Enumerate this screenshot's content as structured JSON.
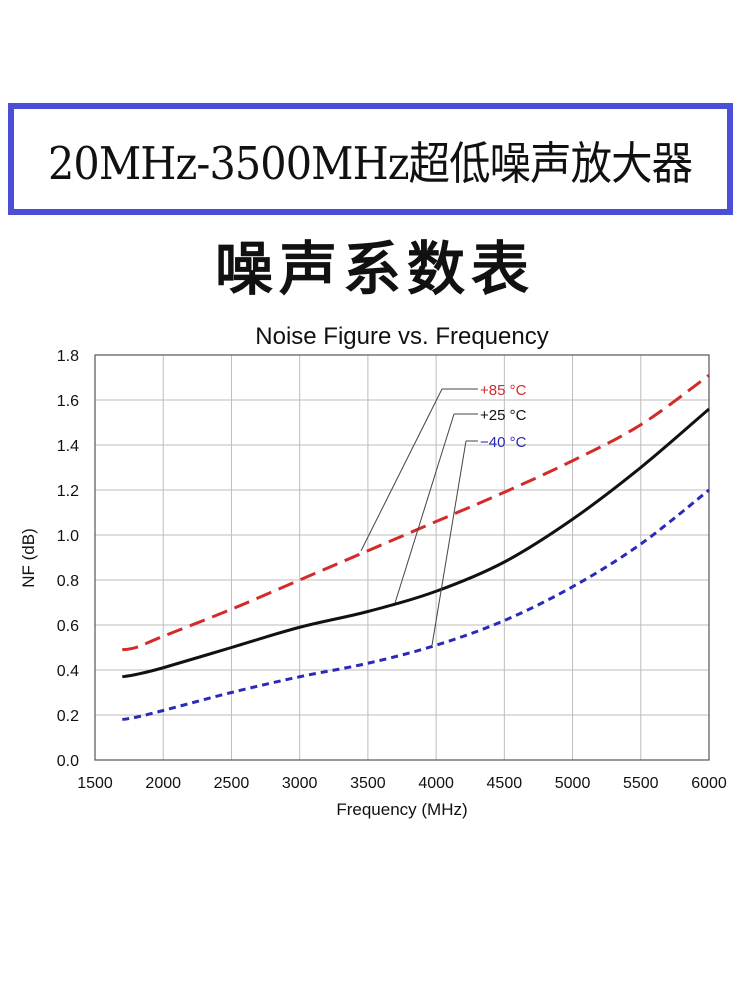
{
  "banner": {
    "title": "20MHz-3500MHz超低噪声放大器"
  },
  "subtitle": "噪声系数表",
  "chart_data": {
    "type": "line",
    "title": "Noise Figure vs. Frequency",
    "xlabel": "Frequency (MHz)",
    "ylabel": "NF (dB)",
    "xlim": [
      1500,
      6000
    ],
    "ylim": [
      0.0,
      1.8
    ],
    "xticks": [
      1500,
      2000,
      2500,
      3000,
      3500,
      4000,
      4500,
      5000,
      5500,
      6000
    ],
    "yticks": [
      "0.0",
      "0.2",
      "0.4",
      "0.6",
      "0.8",
      "1.0",
      "1.2",
      "1.4",
      "1.6",
      "1.8"
    ],
    "grid": true,
    "series": [
      {
        "name": "+85 °C",
        "color": "#d42a2a",
        "style": "dashed",
        "x": [
          1700,
          1800,
          2000,
          2500,
          3000,
          3500,
          4000,
          4500,
          5000,
          5500,
          6000
        ],
        "y": [
          0.49,
          0.5,
          0.55,
          0.67,
          0.8,
          0.93,
          1.06,
          1.19,
          1.33,
          1.49,
          1.71
        ]
      },
      {
        "name": "+25 °C",
        "color": "#111111",
        "style": "solid",
        "x": [
          1700,
          1800,
          2000,
          2500,
          3000,
          3500,
          4000,
          4500,
          5000,
          5500,
          6000
        ],
        "y": [
          0.37,
          0.38,
          0.41,
          0.5,
          0.59,
          0.66,
          0.75,
          0.88,
          1.07,
          1.3,
          1.56
        ]
      },
      {
        "name": "−40 °C",
        "color": "#2a2ab8",
        "style": "dotted",
        "x": [
          1700,
          1800,
          2000,
          2500,
          3000,
          3500,
          4000,
          4500,
          5000,
          5500,
          6000
        ],
        "y": [
          0.18,
          0.19,
          0.22,
          0.3,
          0.37,
          0.43,
          0.51,
          0.62,
          0.77,
          0.96,
          1.2
        ]
      }
    ],
    "annotations": [
      {
        "label": "+85 °C",
        "series": 0,
        "x": 3450,
        "y": 0.93
      },
      {
        "label": "+25 °C",
        "series": 1,
        "x": 3700,
        "y": 0.7
      },
      {
        "label": "−40 °C",
        "series": 2,
        "x": 3970,
        "y": 0.51
      }
    ]
  }
}
